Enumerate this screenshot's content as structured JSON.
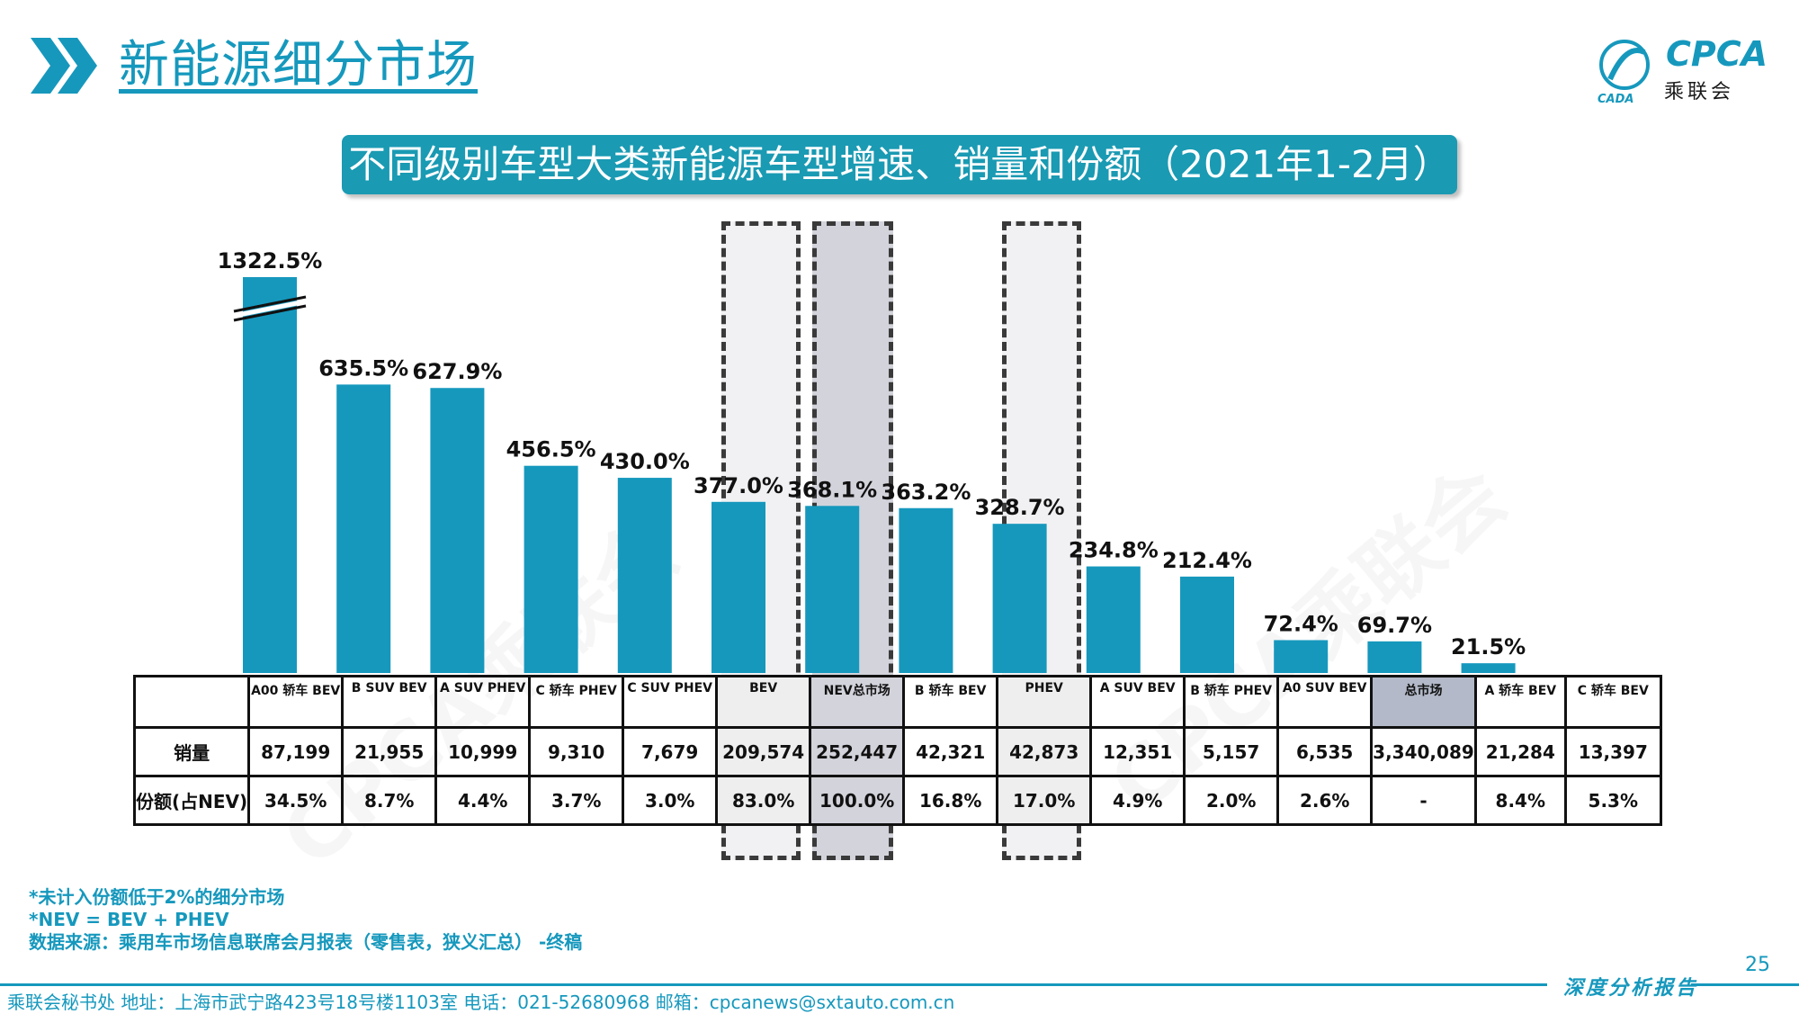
{
  "header": {
    "title": "新能源细分市场",
    "logo_text": "CPCA",
    "logo_cn": "乘联会",
    "logo_small": "CADA"
  },
  "subtitle": "不同级别车型大类新能源车型增速、销量和份额（2021年1-2月）",
  "watermark": "CPCA乘联会",
  "chart_data": {
    "type": "bar",
    "title": "不同级别车型大类新能源车型增速、销量和份额（2021年1-2月）",
    "categories": [
      "A00 轿车 BEV",
      "B SUV BEV",
      "A SUV PHEV",
      "C 轿车 PHEV",
      "C SUV PHEV",
      "BEV",
      "NEV总市场",
      "B 轿车 BEV",
      "PHEV",
      "A SUV BEV",
      "B 轿车 PHEV",
      "A0 SUV BEV",
      "总市场",
      "A 轿车 BEV",
      "C 轿车 BEV"
    ],
    "series": [
      {
        "values": [
          1322.5,
          635.5,
          627.9,
          456.5,
          430.0,
          377.0,
          368.1,
          363.2,
          328.7,
          234.8,
          212.4,
          72.4,
          69.7,
          21.5,
          null
        ]
      }
    ],
    "value_labels": [
      "1322.5%",
      "635.5%",
      "627.9%",
      "456.5%",
      "430.0%",
      "377.0%",
      "368.1%",
      "363.2%",
      "328.7%",
      "234.8%",
      "212.4%",
      "72.4%",
      "69.7%",
      "21.5%",
      ""
    ],
    "axis_break": "first bar truncated",
    "color": "#1698bd",
    "grid": false
  },
  "table": {
    "row_labels": [
      "销量",
      "份额(占NEV)"
    ],
    "columns": [
      {
        "name": "A00 轿车 BEV",
        "sales": "87,199",
        "share": "34.5%"
      },
      {
        "name": "B SUV BEV",
        "sales": "21,955",
        "share": "8.7%"
      },
      {
        "name": "A SUV PHEV",
        "sales": "10,999",
        "share": "4.4%"
      },
      {
        "name": "C 轿车 PHEV",
        "sales": "9,310",
        "share": "3.7%"
      },
      {
        "name": "C SUV PHEV",
        "sales": "7,679",
        "share": "3.0%"
      },
      {
        "name": "BEV",
        "sales": "209,574",
        "share": "83.0%"
      },
      {
        "name": "NEV总市场",
        "sales": "252,447",
        "share": "100.0%"
      },
      {
        "name": "B 轿车 BEV",
        "sales": "42,321",
        "share": "16.8%"
      },
      {
        "name": "PHEV",
        "sales": "42,873",
        "share": "17.0%"
      },
      {
        "name": "A SUV BEV",
        "sales": "12,351",
        "share": "4.9%"
      },
      {
        "name": "B 轿车 PHEV",
        "sales": "5,157",
        "share": "2.0%"
      },
      {
        "name": "A0 SUV BEV",
        "sales": "6,535",
        "share": "2.6%"
      },
      {
        "name": "总市场",
        "sales": "3,340,089",
        "share": "-"
      },
      {
        "name": "A 轿车 BEV",
        "sales": "21,284",
        "share": "8.4%"
      },
      {
        "name": "C 轿车 BEV",
        "sales": "13,397",
        "share": "5.3%"
      }
    ]
  },
  "notes": [
    "*未计入份额低于2%的细分市场",
    "*NEV = BEV + PHEV",
    "数据来源：乘用车市场信息联席会月报表（零售表，狭义汇总） -终稿"
  ],
  "page_number": "25",
  "footer": {
    "report": "深度分析报告",
    "info": "乘联会秘书处   地址：上海市武宁路423号18号楼1103室  电话：021-52680968   邮箱：cpcanews@sxtauto.com.cn"
  }
}
